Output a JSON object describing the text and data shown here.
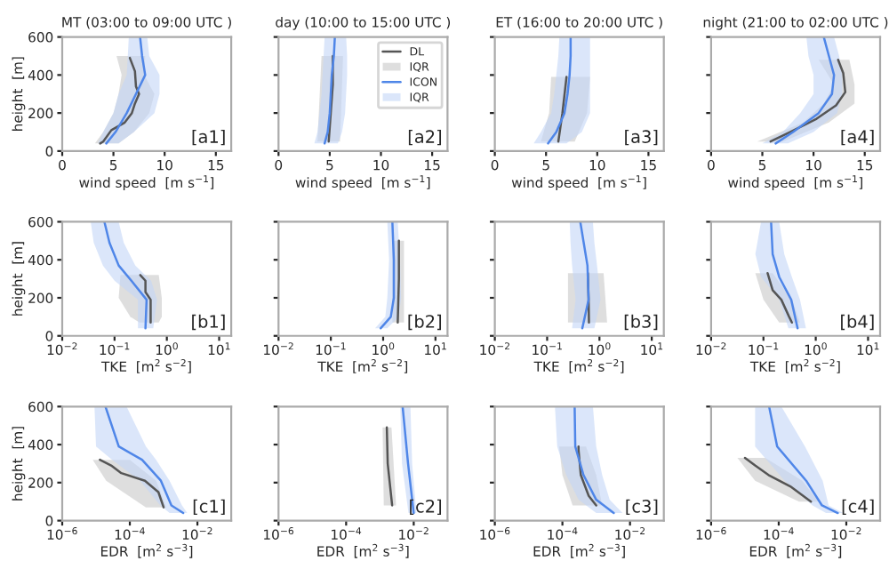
{
  "chart_data": [
    {
      "type": "line",
      "title": "MT (03:00 to 09:00 UTC )",
      "xlabel": "wind speed  [m s$^{−1}$]",
      "ylabel": "height  [m]",
      "xlim": [
        0,
        16.5
      ],
      "xticks": [
        0,
        5,
        10,
        15
      ],
      "ylim": [
        0,
        600
      ],
      "yticks": [
        0,
        200,
        400,
        600
      ],
      "annotations": [
        "[a1]"
      ],
      "series": [
        {
          "type": "line",
          "color": "#555555",
          "x": [
            3.7,
            4.0,
            4.8,
            6.1,
            6.8,
            7.1,
            7.5,
            7.2,
            7.1,
            6.6
          ],
          "values": [
            40,
            50,
            110,
            150,
            200,
            250,
            300,
            340,
            420,
            490
          ]
        },
        {
          "type": "area",
          "color": "#c8c8c8",
          "x": [
            3.2,
            4.0,
            5.0,
            5.5,
            5.8,
            5.3,
            8.1,
            8.0,
            9.0,
            8.5,
            7.0,
            5.5
          ],
          "values": [
            40,
            100,
            200,
            300,
            400,
            500,
            500,
            400,
            300,
            200,
            100,
            40
          ]
        },
        {
          "type": "line",
          "color": "#4f86e8",
          "x": [
            4.3,
            5.2,
            6.3,
            7.2,
            8.1,
            7.8,
            7.6
          ],
          "values": [
            40,
            100,
            200,
            300,
            400,
            500,
            600
          ]
        },
        {
          "type": "area",
          "color": "#c3d5f7",
          "x": [
            3.5,
            4.0,
            5.0,
            5.5,
            6.3,
            6.4,
            6.5,
            8.3,
            8.5,
            9.5,
            9.5,
            9.0,
            7.0,
            5.5
          ],
          "values": [
            40,
            100,
            200,
            300,
            400,
            500,
            600,
            600,
            500,
            400,
            300,
            200,
            100,
            40
          ]
        }
      ]
    },
    {
      "type": "line",
      "title": "day (10:00 to 15:00 UTC )",
      "xlabel": "wind speed  [m s$^{−1}$]",
      "xlim": [
        0,
        16.5
      ],
      "xticks": [
        0,
        5,
        10,
        15
      ],
      "ylim": [
        0,
        600
      ],
      "yticks": [
        0,
        200,
        400,
        600
      ],
      "tick_labels": "x",
      "legend": "top right",
      "annotations": [
        "[a2]"
      ],
      "series": [
        {
          "name": "DL",
          "type": "line",
          "color": "#555555",
          "x": [
            4.9,
            5.1,
            5.3,
            5.3
          ],
          "values": [
            50,
            200,
            350,
            500
          ]
        },
        {
          "name": "IQR",
          "type": "area",
          "color": "#c8c8c8",
          "x": [
            3.8,
            4.2,
            6.3,
            6.0
          ],
          "values": [
            50,
            500,
            500,
            50
          ]
        },
        {
          "name": "ICON",
          "type": "line",
          "color": "#4f86e8",
          "x": [
            4.5,
            4.8,
            5.0,
            5.1,
            5.2,
            5.4,
            5.5
          ],
          "values": [
            40,
            100,
            200,
            300,
            400,
            500,
            600
          ]
        },
        {
          "name": "IQR",
          "type": "area",
          "color": "#c3d5f7",
          "x": [
            3.5,
            3.8,
            4.0,
            4.2,
            4.3,
            4.4,
            4.5,
            6.6,
            6.7,
            6.7,
            6.6,
            6.5,
            6.2,
            5.8
          ],
          "values": [
            40,
            100,
            200,
            300,
            400,
            500,
            600,
            600,
            500,
            400,
            300,
            200,
            100,
            40
          ]
        }
      ]
    },
    {
      "type": "line",
      "title": "ET (16:00 to 20:00 UTC )",
      "xlabel": "wind speed  [m s$^{−1}$]",
      "xlim": [
        0,
        16.5
      ],
      "xticks": [
        0,
        5,
        10,
        15
      ],
      "ylim": [
        0,
        600
      ],
      "yticks": [
        0,
        200,
        400,
        600
      ],
      "tick_labels": "x",
      "annotations": [
        "[a3]"
      ],
      "series": [
        {
          "type": "line",
          "color": "#555555",
          "x": [
            6.2,
            6.6,
            7.0
          ],
          "values": [
            50,
            200,
            390
          ]
        },
        {
          "type": "area",
          "color": "#c8c8c8",
          "x": [
            4.5,
            5.3,
            5.5,
            9.3,
            9.0,
            7.8
          ],
          "values": [
            50,
            200,
            390,
            390,
            200,
            50
          ]
        },
        {
          "type": "line",
          "color": "#4f86e8",
          "x": [
            5.2,
            6.0,
            6.8,
            7.1,
            7.3,
            7.4,
            7.4
          ],
          "values": [
            40,
            100,
            200,
            300,
            400,
            500,
            600
          ]
        },
        {
          "type": "area",
          "color": "#c3d5f7",
          "x": [
            3.8,
            4.5,
            5.5,
            5.8,
            6.0,
            6.2,
            6.3,
            9.3,
            9.3,
            9.3,
            9.3,
            9.3,
            8.5,
            7.0
          ],
          "values": [
            40,
            100,
            200,
            300,
            400,
            500,
            600,
            600,
            500,
            400,
            300,
            200,
            100,
            40
          ]
        }
      ]
    },
    {
      "type": "line",
      "title": "night (21:00 to 02:00 UTC )",
      "xlabel": "wind speed  [m s$^{−1}$]",
      "xlim": [
        0,
        16.5
      ],
      "xticks": [
        0,
        5,
        10,
        15
      ],
      "ylim": [
        0,
        600
      ],
      "yticks": [
        0,
        200,
        400,
        600
      ],
      "tick_labels": "x",
      "annotations": [
        "[a4]"
      ],
      "series": [
        {
          "type": "line",
          "color": "#555555",
          "x": [
            5.8,
            7.7,
            10.3,
            12.2,
            13.1,
            12.9,
            12.4
          ],
          "values": [
            50,
            100,
            170,
            240,
            310,
            410,
            480
          ]
        },
        {
          "type": "area",
          "color": "#c8c8c8",
          "x": [
            4.5,
            9.0,
            11.0,
            12.0,
            10.5,
            13.5,
            14.0,
            14.0,
            11.5,
            7.0
          ],
          "values": [
            50,
            150,
            250,
            350,
            480,
            480,
            350,
            250,
            150,
            50
          ]
        },
        {
          "type": "line",
          "color": "#4f86e8",
          "x": [
            6.3,
            8.0,
            10.5,
            11.8,
            12.0,
            11.5,
            11.0
          ],
          "values": [
            40,
            100,
            200,
            300,
            400,
            500,
            600
          ]
        },
        {
          "type": "area",
          "color": "#c3d5f7",
          "x": [
            5.0,
            7.0,
            8.7,
            10.0,
            10.0,
            9.5,
            9.3,
            12.0,
            12.5,
            12.8,
            12.8,
            12.3,
            10.0,
            7.5
          ],
          "values": [
            40,
            100,
            200,
            300,
            400,
            500,
            600,
            600,
            500,
            400,
            300,
            200,
            100,
            40
          ]
        }
      ]
    },
    {
      "type": "line",
      "log": "x",
      "xlabel": "TKE  [m$^{2}$ s$^{−2}$]",
      "ylabel": "height  [m]",
      "xlim": [
        0.01,
        17
      ],
      "xticks": [
        {
          "value": 0.01,
          "label": "10$^{−2}$"
        },
        {
          "value": 0.1,
          "label": "10$^{−1}$"
        },
        {
          "value": 1,
          "label": "10$^{0}$"
        },
        {
          "value": 10,
          "label": "10$^{1}$"
        }
      ],
      "ylim": [
        0,
        600
      ],
      "yticks": [
        0,
        200,
        400,
        600
      ],
      "annotations": [
        "[b1]"
      ],
      "series": [
        {
          "type": "line",
          "color": "#555555",
          "x": [
            0.49,
            0.49,
            0.39,
            0.39,
            0.31
          ],
          "values": [
            70,
            190,
            230,
            290,
            320
          ]
        },
        {
          "type": "area",
          "color": "#c8c8c8",
          "x": [
            0.3,
            0.2,
            0.12,
            0.13,
            0.7,
            0.8,
            0.8,
            0.7
          ],
          "values": [
            70,
            100,
            200,
            320,
            320,
            200,
            100,
            70
          ]
        },
        {
          "type": "line",
          "color": "#4f86e8",
          "x": [
            0.39,
            0.41,
            0.21,
            0.12,
            0.08,
            0.064
          ],
          "values": [
            40,
            190,
            290,
            370,
            490,
            600
          ]
        },
        {
          "type": "area",
          "color": "#c3d5f7",
          "x": [
            0.28,
            0.28,
            0.1,
            0.06,
            0.04,
            0.035,
            0.12,
            0.15,
            0.25,
            0.5,
            0.65,
            0.55
          ],
          "values": [
            40,
            190,
            290,
            370,
            490,
            600,
            600,
            490,
            370,
            290,
            190,
            40
          ]
        }
      ]
    },
    {
      "type": "line",
      "log": "x",
      "xlabel": "TKE  [m$^{2}$ s$^{−2}$]",
      "xlim": [
        0.01,
        17
      ],
      "xticks": [
        {
          "value": 0.01,
          "label": "10$^{−2}$"
        },
        {
          "value": 0.1,
          "label": "10$^{−1}$"
        },
        {
          "value": 1,
          "label": "10$^{0}$"
        },
        {
          "value": 10,
          "label": "10$^{1}$"
        }
      ],
      "ylim": [
        0,
        600
      ],
      "yticks": [
        0,
        200,
        400,
        600
      ],
      "tick_labels": "x",
      "annotations": [
        "[b2]"
      ],
      "series": [
        {
          "type": "line",
          "color": "#555555",
          "x": [
            1.9,
            2.0,
            2.0
          ],
          "values": [
            70,
            300,
            500
          ]
        },
        {
          "type": "area",
          "color": "#c8c8c8",
          "x": [
            1.5,
            1.5,
            2.5,
            2.5
          ],
          "values": [
            70,
            500,
            500,
            70
          ]
        },
        {
          "type": "line",
          "color": "#4f86e8",
          "x": [
            0.9,
            1.4,
            1.6,
            1.6,
            1.5
          ],
          "values": [
            40,
            100,
            200,
            400,
            600
          ]
        },
        {
          "type": "area",
          "color": "#c3d5f7",
          "x": [
            0.7,
            1.1,
            1.2,
            1.3,
            1.2,
            1.9,
            2.1,
            2.2,
            2.0,
            1.2
          ],
          "values": [
            40,
            100,
            200,
            400,
            600,
            600,
            400,
            200,
            100,
            40
          ]
        }
      ]
    },
    {
      "type": "line",
      "log": "x",
      "xlabel": "TKE  [m$^{2}$ s$^{−2}$]",
      "xlim": [
        0.01,
        17
      ],
      "xticks": [
        {
          "value": 0.01,
          "label": "10$^{−2}$"
        },
        {
          "value": 0.1,
          "label": "10$^{−1}$"
        },
        {
          "value": 1,
          "label": "10$^{0}$"
        },
        {
          "value": 10,
          "label": "10$^{1}$"
        }
      ],
      "ylim": [
        0,
        600
      ],
      "yticks": [
        0,
        200,
        400,
        600
      ],
      "tick_labels": "x",
      "annotations": [
        "[b3]"
      ],
      "series": [
        {
          "type": "line",
          "color": "#555555",
          "x": [
            0.63,
            0.62,
            0.6
          ],
          "values": [
            70,
            200,
            330
          ]
        },
        {
          "type": "area",
          "color": "#c8c8c8",
          "x": [
            0.25,
            0.25,
            1.2,
            1.4
          ],
          "values": [
            70,
            330,
            330,
            70
          ]
        },
        {
          "type": "line",
          "color": "#4f86e8",
          "x": [
            0.47,
            0.62,
            0.59,
            0.5,
            0.43
          ],
          "values": [
            40,
            190,
            370,
            490,
            600
          ]
        },
        {
          "type": "area",
          "color": "#c3d5f7",
          "x": [
            0.3,
            0.35,
            0.3,
            0.28,
            0.27,
            0.75,
            0.8,
            0.9,
            1.05,
            0.8
          ],
          "values": [
            40,
            190,
            370,
            490,
            600,
            600,
            490,
            370,
            190,
            40
          ]
        }
      ]
    },
    {
      "type": "line",
      "log": "x",
      "xlabel": "TKE  [m$^{2}$ s$^{−2}$]",
      "xlim": [
        0.01,
        17
      ],
      "xticks": [
        {
          "value": 0.01,
          "label": "10$^{−2}$"
        },
        {
          "value": 0.1,
          "label": "10$^{−1}$"
        },
        {
          "value": 1,
          "label": "10$^{0}$"
        },
        {
          "value": 10,
          "label": "10$^{1}$"
        }
      ],
      "ylim": [
        0,
        600
      ],
      "yticks": [
        0,
        200,
        400,
        600
      ],
      "tick_labels": "x",
      "annotations": [
        "[b4]"
      ],
      "series": [
        {
          "type": "line",
          "color": "#555555",
          "x": [
            0.35,
            0.31,
            0.22,
            0.15,
            0.12
          ],
          "values": [
            70,
            100,
            190,
            240,
            330
          ]
        },
        {
          "type": "area",
          "color": "#c8c8c8",
          "x": [
            0.2,
            0.1,
            0.07,
            0.15,
            0.35,
            0.5
          ],
          "values": [
            70,
            190,
            330,
            330,
            190,
            70
          ]
        },
        {
          "type": "line",
          "color": "#4f86e8",
          "x": [
            0.45,
            0.34,
            0.2,
            0.15,
            0.14
          ],
          "values": [
            40,
            190,
            310,
            430,
            600
          ]
        },
        {
          "type": "area",
          "color": "#c3d5f7",
          "x": [
            0.3,
            0.2,
            0.09,
            0.07,
            0.09,
            0.2,
            0.25,
            0.35,
            0.5,
            0.65
          ],
          "values": [
            40,
            190,
            310,
            430,
            600,
            600,
            430,
            310,
            190,
            40
          ]
        }
      ]
    },
    {
      "type": "line",
      "log": "x",
      "xlabel": "EDR  [m$^{2}$ s$^{−3}$]",
      "ylabel": "height  [m]",
      "xlim": [
        1e-06,
        0.1
      ],
      "xticks": [
        {
          "value": 1e-06,
          "label": "10$^{−6}$"
        },
        {
          "value": 0.0001,
          "label": "10$^{−4}$"
        },
        {
          "value": 0.01,
          "label": "10$^{−2}$"
        }
      ],
      "ylim": [
        0,
        600
      ],
      "yticks": [
        0,
        200,
        400,
        600
      ],
      "annotations": [
        "[c1]"
      ],
      "series": [
        {
          "type": "line",
          "color": "#555555",
          "x": [
            0.001,
            0.0007,
            0.00028,
            5.6e-05,
            2.8e-05,
            1.3e-05
          ],
          "values": [
            70,
            150,
            210,
            250,
            290,
            320
          ]
        },
        {
          "type": "area",
          "color": "#c8c8c8",
          "x": [
            0.0003,
            2e-05,
            8e-06,
            0.0001,
            0.0006,
            0.0012
          ],
          "values": [
            70,
            210,
            320,
            320,
            210,
            70
          ]
        },
        {
          "type": "line",
          "color": "#4f86e8",
          "x": [
            0.0038,
            0.0017,
            0.00083,
            0.00023,
            4.7e-05,
            1.9e-05
          ],
          "values": [
            40,
            80,
            210,
            320,
            390,
            600
          ]
        },
        {
          "type": "area",
          "color": "#c3d5f7",
          "x": [
            0.0015,
            0.0008,
            0.0002,
            3e-05,
            1e-05,
            9e-06,
            8e-05,
            0.0003,
            0.0006,
            0.0015,
            0.0035,
            0.005
          ],
          "values": [
            40,
            80,
            210,
            320,
            390,
            600,
            600,
            390,
            320,
            210,
            80,
            40
          ]
        }
      ]
    },
    {
      "type": "line",
      "log": "x",
      "xlabel": "EDR  [m$^{2}$ s$^{−3}$]",
      "xlim": [
        1e-06,
        0.1
      ],
      "xticks": [
        {
          "value": 1e-06,
          "label": "10$^{−6}$"
        },
        {
          "value": 0.0001,
          "label": "10$^{−4}$"
        },
        {
          "value": 0.01,
          "label": "10$^{−2}$"
        }
      ],
      "ylim": [
        0,
        600
      ],
      "yticks": [
        0,
        200,
        400,
        600
      ],
      "tick_labels": "x",
      "annotations": [
        "[c2]"
      ],
      "series": [
        {
          "type": "line",
          "color": "#555555",
          "x": [
            0.0023,
            0.0017,
            0.0016
          ],
          "values": [
            80,
            300,
            490
          ]
        },
        {
          "type": "area",
          "color": "#c8c8c8",
          "x": [
            0.0013,
            0.0012,
            0.0022,
            0.003
          ],
          "values": [
            80,
            490,
            490,
            80
          ]
        },
        {
          "type": "line",
          "color": "#4f86e8",
          "x": [
            0.01,
            0.0068,
            0.0047
          ],
          "values": [
            40,
            300,
            600
          ]
        },
        {
          "type": "area",
          "color": "#c3d5f7",
          "x": [
            0.007,
            0.0045,
            0.004,
            0.008,
            0.009,
            0.012
          ],
          "values": [
            40,
            300,
            600,
            600,
            300,
            40
          ]
        }
      ]
    },
    {
      "type": "line",
      "log": "x",
      "xlabel": "EDR  [m$^{2}$ s$^{−3}$]",
      "xlim": [
        1e-06,
        0.1
      ],
      "xticks": [
        {
          "value": 1e-06,
          "label": "10$^{−6}$"
        },
        {
          "value": 0.0001,
          "label": "10$^{−4}$"
        },
        {
          "value": 0.01,
          "label": "10$^{−2}$"
        }
      ],
      "ylim": [
        0,
        600
      ],
      "yticks": [
        0,
        200,
        400,
        600
      ],
      "tick_labels": "x",
      "annotations": [
        "[c3]"
      ],
      "series": [
        {
          "type": "line",
          "color": "#555555",
          "x": [
            0.001,
            0.0006,
            0.00035,
            0.0003,
            0.0003
          ],
          "values": [
            80,
            130,
            240,
            370,
            390
          ]
        },
        {
          "type": "area",
          "color": "#c8c8c8",
          "x": [
            0.0002,
            0.0001,
            8e-05,
            0.0005,
            0.001,
            0.0015
          ],
          "values": [
            80,
            240,
            390,
            390,
            240,
            80
          ]
        },
        {
          "type": "line",
          "color": "#4f86e8",
          "x": [
            0.0033,
            0.001,
            0.00042,
            0.00024,
            0.00023
          ],
          "values": [
            40,
            110,
            240,
            390,
            600
          ]
        },
        {
          "type": "area",
          "color": "#c3d5f7",
          "x": [
            0.001,
            0.0003,
            0.00013,
            7e-05,
            6e-05,
            0.0008,
            0.001,
            0.0015,
            0.0025,
            0.006
          ],
          "values": [
            40,
            110,
            240,
            390,
            600,
            600,
            390,
            240,
            110,
            40
          ]
        }
      ]
    },
    {
      "type": "line",
      "log": "x",
      "xlabel": "EDR  [m$^{2}$ s$^{−3}$]",
      "xlim": [
        1e-06,
        0.1
      ],
      "xticks": [
        {
          "value": 1e-06,
          "label": "10$^{−6}$"
        },
        {
          "value": 0.0001,
          "label": "10$^{−4}$"
        },
        {
          "value": 0.01,
          "label": "10$^{−2}$"
        }
      ],
      "ylim": [
        0,
        600
      ],
      "yticks": [
        0,
        200,
        400,
        600
      ],
      "tick_labels": "x",
      "annotations": [
        "[c4]"
      ],
      "series": [
        {
          "type": "line",
          "color": "#555555",
          "x": [
            0.0009,
            0.00022,
            5e-05,
            2e-05,
            1e-05
          ],
          "values": [
            100,
            180,
            240,
            290,
            330
          ]
        },
        {
          "type": "area",
          "color": "#c8c8c8",
          "x": [
            0.0004,
            2e-05,
            6e-06,
            4e-05,
            0.0005,
            0.0015
          ],
          "values": [
            100,
            210,
            330,
            330,
            210,
            100
          ]
        },
        {
          "type": "line",
          "color": "#4f86e8",
          "x": [
            0.0056,
            0.0019,
            0.00065,
            9e-05,
            5.2e-05
          ],
          "values": [
            40,
            80,
            210,
            390,
            600
          ]
        },
        {
          "type": "area",
          "color": "#c3d5f7",
          "x": [
            0.0025,
            0.001,
            0.00015,
            2e-05,
            2e-05,
            0.00012,
            0.0006,
            0.002,
            0.003,
            0.008
          ],
          "values": [
            40,
            80,
            210,
            390,
            600,
            600,
            390,
            210,
            80,
            40
          ]
        }
      ]
    }
  ]
}
